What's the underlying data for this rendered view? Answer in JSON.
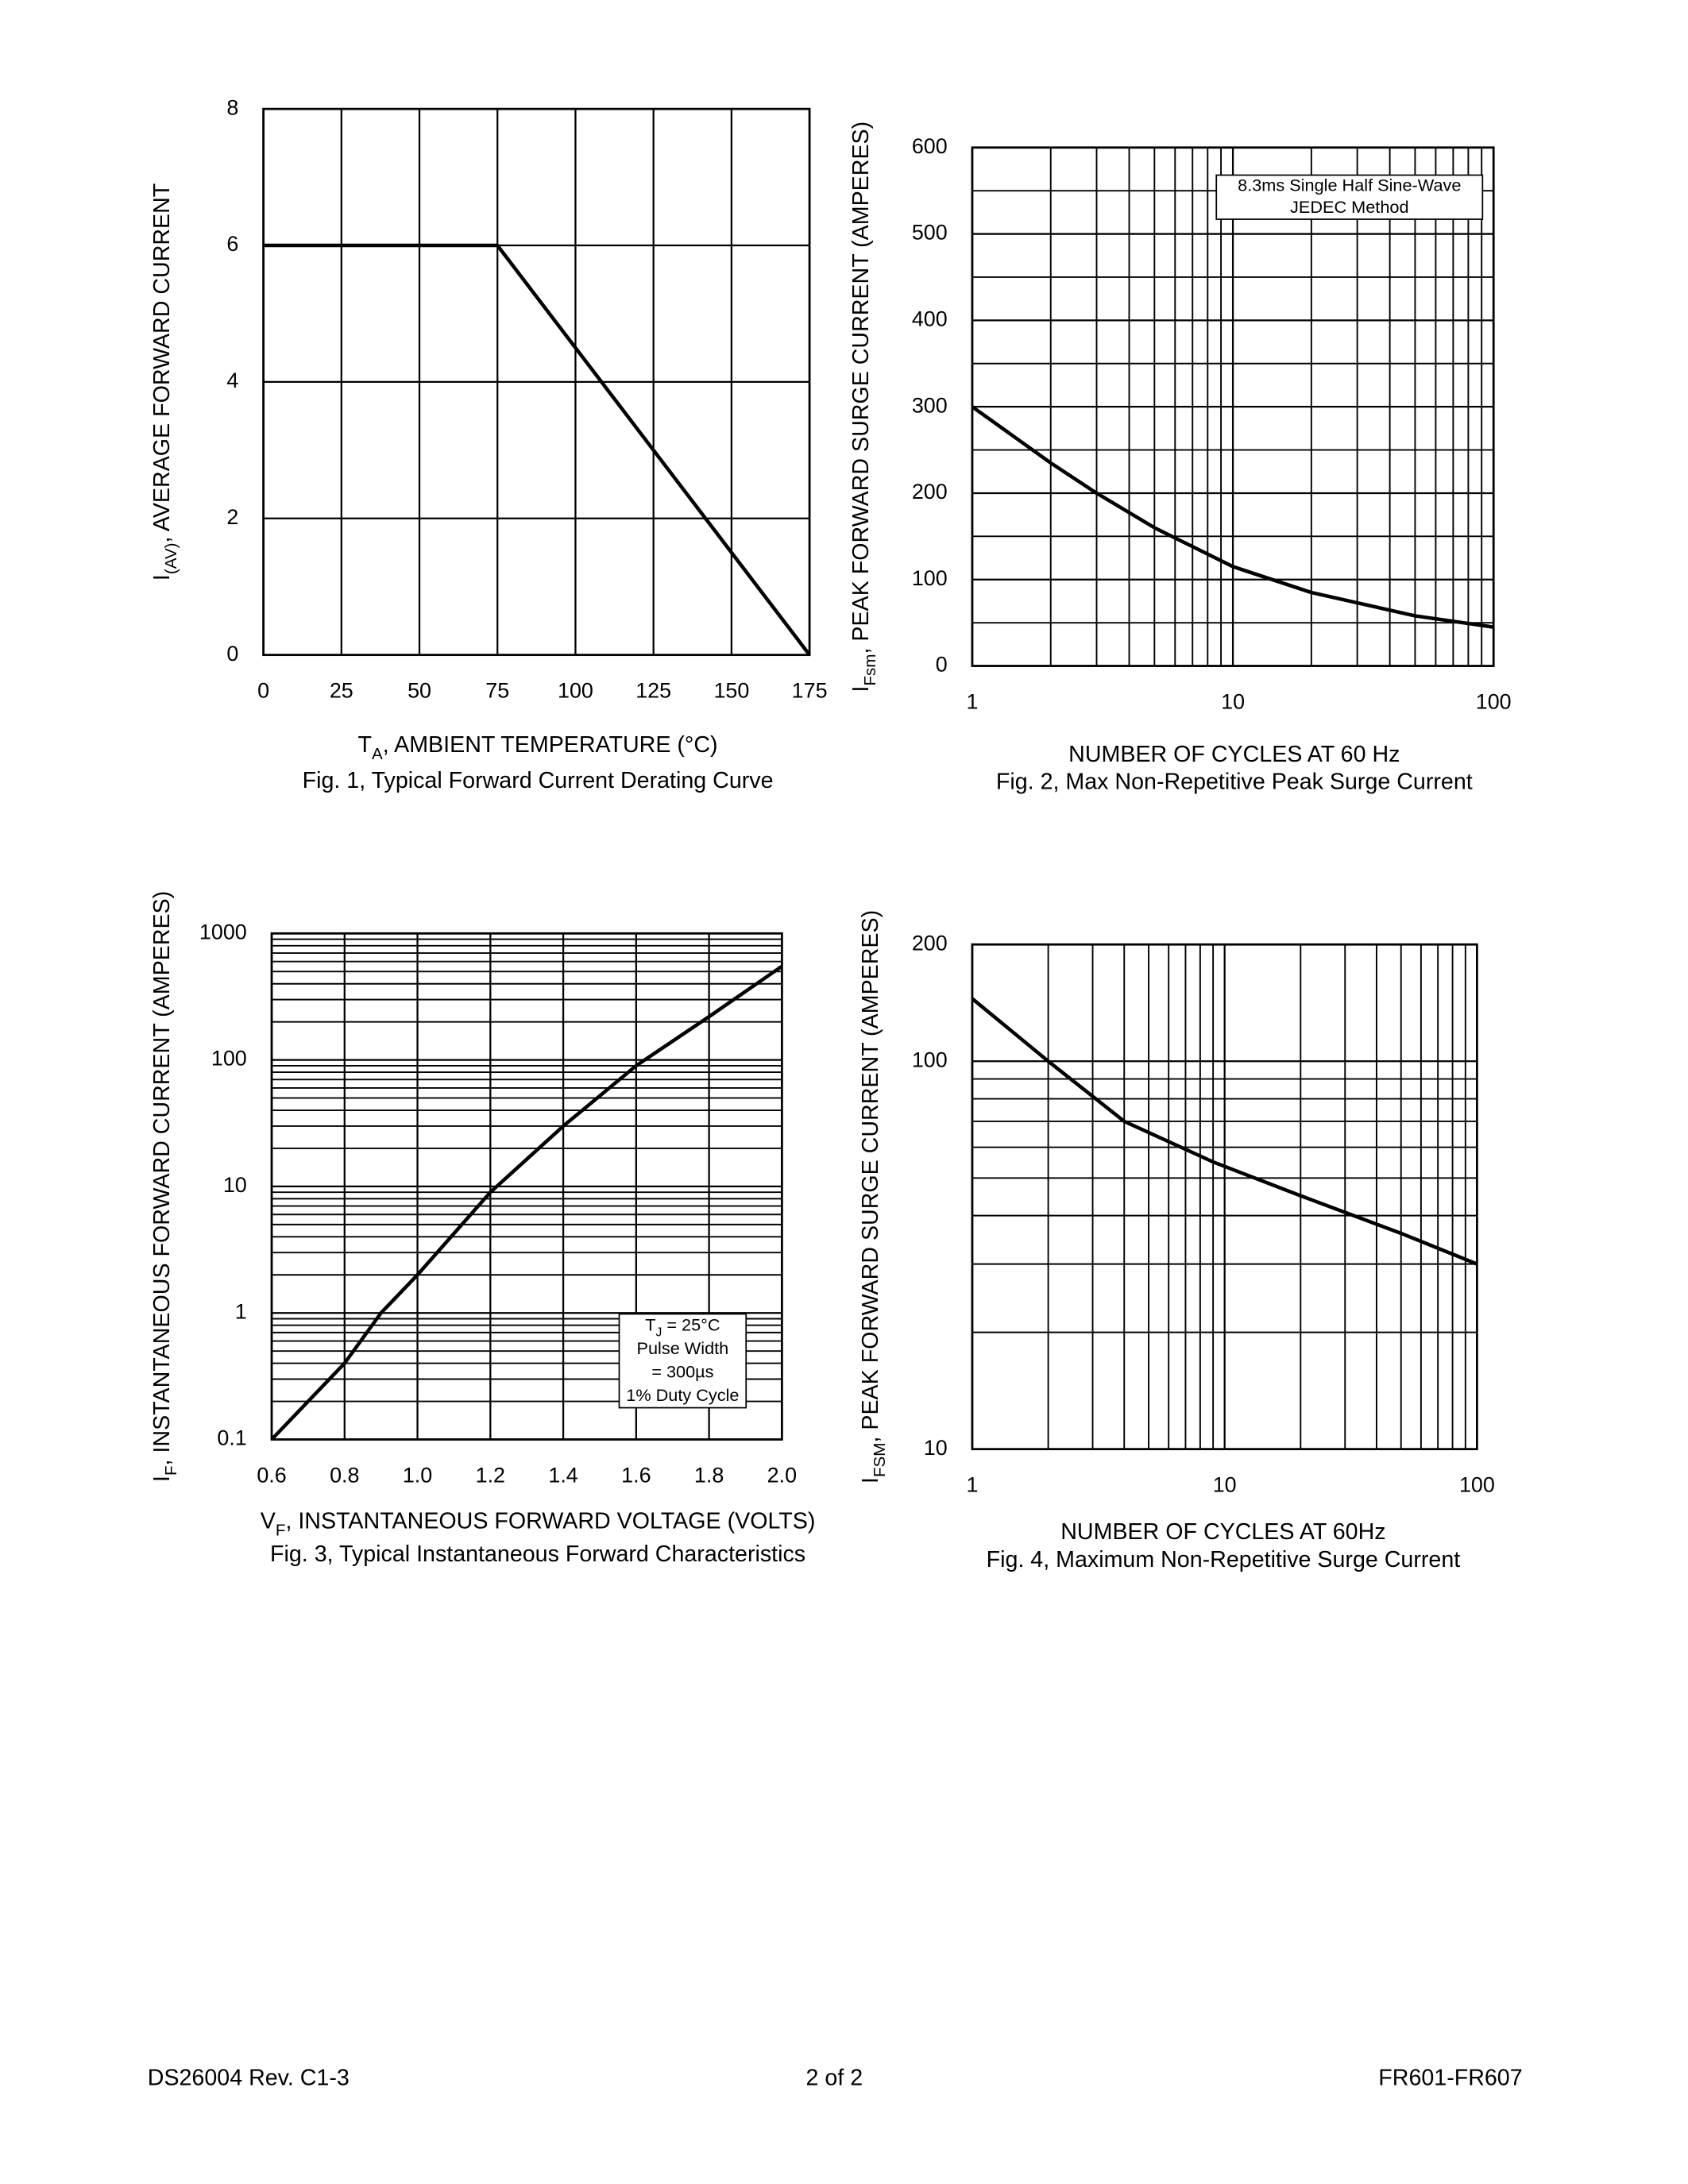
{
  "chart_data": [
    {
      "type": "line",
      "ylabel": [
        "I",
        "(AV)",
        ", AVERAGE FORWARD CURRENT"
      ],
      "xlabel": [
        "T",
        "A",
        ", AMBIENT TEMPERATURE (°C)"
      ],
      "caption": "Fig. 1,  Typical Forward Current Derating Curve",
      "x": [
        0,
        75,
        175
      ],
      "values": [
        6,
        6,
        0
      ],
      "color": "#000000",
      "xlim": [
        0,
        175
      ],
      "xticks": [
        0,
        25,
        50,
        75,
        100,
        125,
        150,
        175
      ],
      "ylim": [
        0,
        8
      ],
      "yticks": [
        0,
        2,
        4,
        6,
        8
      ],
      "grid": true
    },
    {
      "type": "line",
      "ylabel": [
        "I",
        "Fsm",
        ", PEAK FORWARD SURGE CURRENT (AMPERES)"
      ],
      "xlabel": "NUMBER OF CYCLES AT 60 Hz",
      "caption": "Fig. 2,  Max Non-Repetitive Peak Surge Current",
      "annotation": [
        [
          "8.3ms Single Half Sine-Wave"
        ],
        [
          "JEDEC Method"
        ]
      ],
      "x": [
        1,
        2,
        3,
        5,
        10,
        20,
        50,
        100
      ],
      "values": [
        300,
        235,
        200,
        160,
        115,
        85,
        58,
        45
      ],
      "color": "#000000",
      "xlim": [
        1,
        100
      ],
      "xticks": [
        1,
        10,
        100
      ],
      "x_log": true,
      "ylim": [
        0,
        600
      ],
      "yticks": [
        0,
        100,
        200,
        300,
        400,
        500,
        600
      ],
      "grid": true,
      "x_minor_grid": true,
      "y_minor_grid": true
    },
    {
      "type": "line",
      "ylabel": [
        "I",
        "F",
        ", INSTANTANEOUS FORWARD CURRENT (AMPERES)"
      ],
      "xlabel": [
        "V",
        "F",
        ", INSTANTANEOUS FORWARD VOLTAGE (VOLTS)"
      ],
      "caption": "Fig. 3,  Typical Instantaneous Forward Characteristics",
      "annotation": [
        [
          "T",
          "J",
          " = 25°C"
        ],
        [
          "Pulse Width"
        ],
        [
          "= 300µs"
        ],
        [
          "1% Duty Cycle"
        ]
      ],
      "x": [
        0.6,
        0.8,
        0.9,
        1.0,
        1.2,
        1.4,
        1.6,
        1.8,
        2.0
      ],
      "values": [
        0.1,
        0.4,
        1,
        2,
        9,
        30,
        90,
        220,
        550
      ],
      "color": "#000000",
      "xlim": [
        0.6,
        2.0
      ],
      "xticks": [
        0.6,
        0.8,
        {
          "value": 1.0,
          "label": "1.0"
        },
        1.2,
        1.4,
        1.6,
        1.8,
        {
          "value": 2.0,
          "label": "2.0"
        }
      ],
      "ylim": [
        0.1,
        1000
      ],
      "yticks": [
        0.1,
        1,
        10,
        100,
        1000
      ],
      "y_log": true,
      "grid": true,
      "y_minor_grid": true
    },
    {
      "type": "line",
      "ylabel": [
        "I",
        "FSM",
        ", PEAK FORWARD SURGE CURRENT (AMPERES)"
      ],
      "xlabel": "NUMBER OF CYCLES AT 60Hz",
      "caption": "Fig. 4,  Maximum Non-Repetitive Surge Current",
      "x": [
        1,
        2,
        4,
        9,
        20,
        50,
        100
      ],
      "values": [
        145,
        100,
        70,
        55,
        45,
        36,
        30
      ],
      "color": "#000000",
      "xlim": [
        1,
        100
      ],
      "xticks": [
        1,
        10,
        100
      ],
      "x_log": true,
      "ylim": [
        10,
        200
      ],
      "yticks": [
        10,
        100,
        200
      ],
      "y_log": true,
      "grid": true,
      "x_minor_grid": true,
      "y_minor_grid": true
    }
  ],
  "footer": {
    "left": "DS26004 Rev. C1-3",
    "center": "2 of 2",
    "right": "FR601-FR607"
  }
}
